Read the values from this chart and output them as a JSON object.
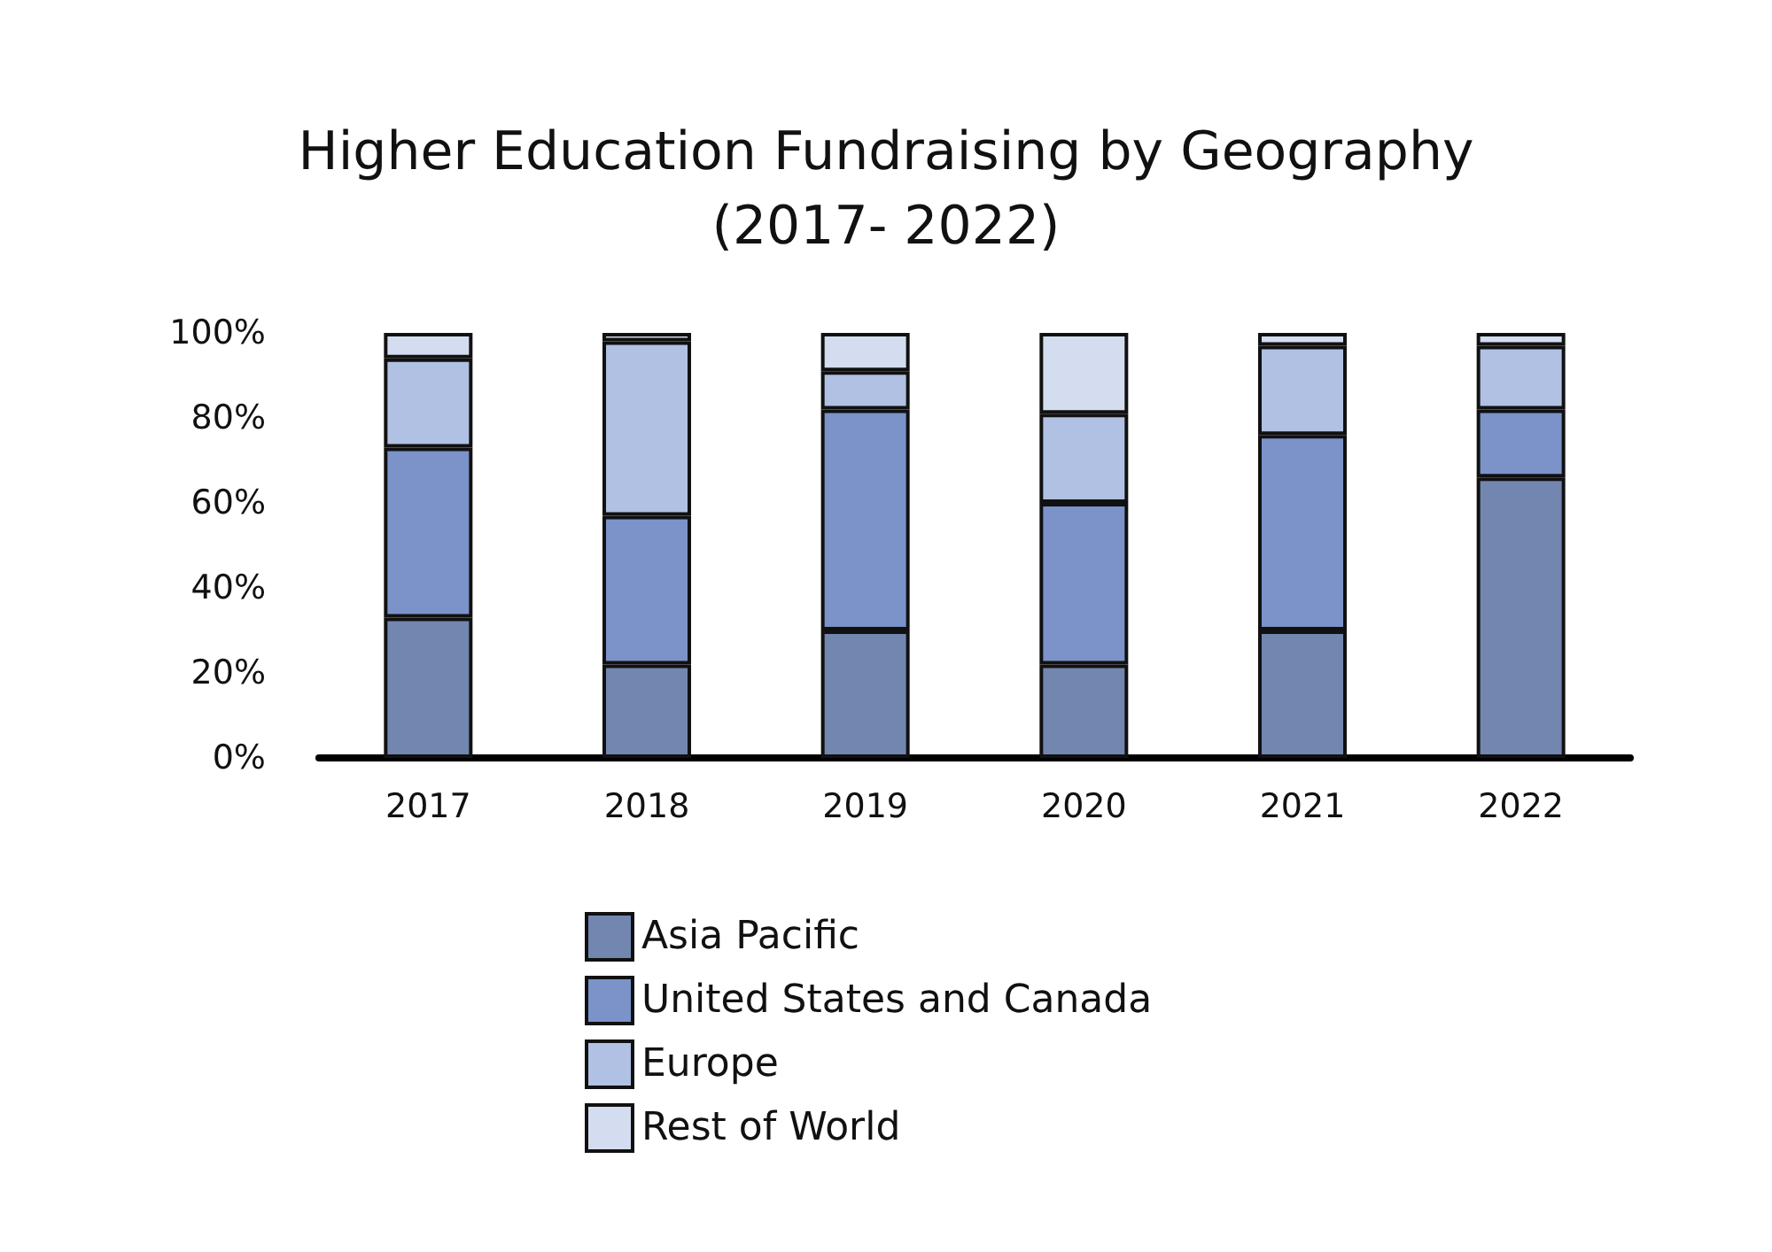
{
  "chart_data": {
    "type": "bar",
    "stacked": true,
    "title": "Higher Education Fundraising by Geography\n(2017- 2022)",
    "categories": [
      "2017",
      "2018",
      "2019",
      "2020",
      "2021",
      "2022"
    ],
    "series": [
      {
        "name": "Asia Pacific",
        "color": "#7286b0",
        "values": [
          33,
          22,
          30,
          22,
          30,
          66
        ]
      },
      {
        "name": "United States and Canada",
        "color": "#7b93c9",
        "values": [
          40,
          35,
          52,
          38,
          46,
          16
        ]
      },
      {
        "name": "Europe",
        "color": "#b0c1e3",
        "values": [
          21,
          41,
          9,
          21,
          21,
          15
        ]
      },
      {
        "name": "Rest of World",
        "color": "#d3ddef",
        "values": [
          6,
          2,
          9,
          19,
          3,
          3
        ]
      }
    ],
    "ylim": [
      0,
      100
    ],
    "yticks": [
      {
        "value": 0,
        "label": "0%"
      },
      {
        "value": 20,
        "label": "20%"
      },
      {
        "value": 40,
        "label": "40%"
      },
      {
        "value": 60,
        "label": "60%"
      },
      {
        "value": 80,
        "label": "80%"
      },
      {
        "value": 100,
        "label": "100%"
      }
    ],
    "grid": false,
    "legend": "bottom"
  }
}
